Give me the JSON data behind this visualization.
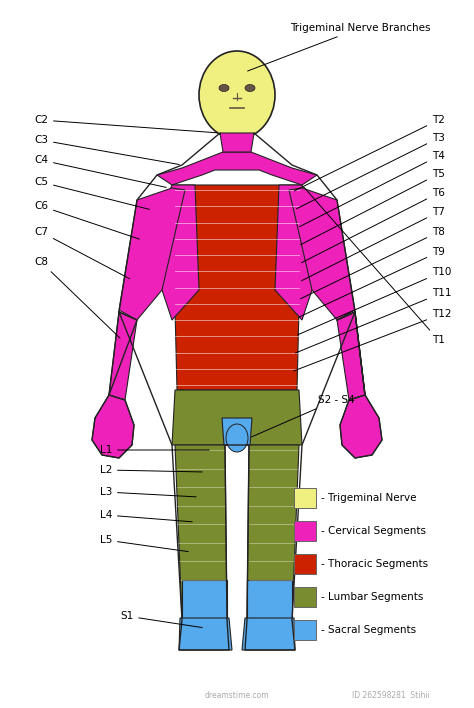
{
  "bg_color": "#ffffff",
  "colors": {
    "trigeminal": "#f0f080",
    "cervical": "#ee22bb",
    "thoracic": "#cc2200",
    "lumbar": "#7a8c30",
    "sacral": "#55aaee",
    "outline": "#222222"
  },
  "legend_items": [
    {
      "color": "#f0f080",
      "label": "- Trigeminal Nerve"
    },
    {
      "color": "#ee22bb",
      "label": "- Cervical Segments"
    },
    {
      "color": "#cc2200",
      "label": "- Thoracic Segments"
    },
    {
      "color": "#7a8c30",
      "label": "- Lumbar Segments"
    },
    {
      "color": "#55aaee",
      "label": "- Sacral Segments"
    }
  ],
  "top_label": "Trigeminal Nerve Branches",
  "left_labels": [
    "C2",
    "C3",
    "C4",
    "C5",
    "C6",
    "C7",
    "C8"
  ],
  "right_labels": [
    "T2",
    "T3",
    "T4",
    "T5",
    "T6",
    "T7",
    "T8",
    "T9",
    "T10",
    "T11",
    "T12",
    "T1"
  ],
  "lower_left_labels": [
    "L1",
    "L2",
    "L3",
    "L4",
    "L5"
  ],
  "s2s4_label": "S2 - S4",
  "s1_label": "S1"
}
